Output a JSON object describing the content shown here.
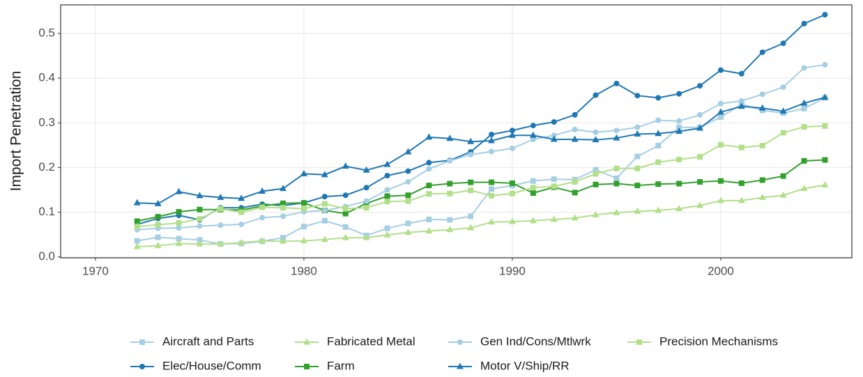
{
  "chart_data": {
    "type": "line",
    "y_label": "Import Penetration",
    "x": [
      1972,
      1973,
      1974,
      1975,
      1976,
      1977,
      1978,
      1979,
      1980,
      1981,
      1982,
      1983,
      1984,
      1985,
      1986,
      1987,
      1988,
      1989,
      1990,
      1991,
      1992,
      1993,
      1994,
      1995,
      1996,
      1997,
      1998,
      1999,
      2000,
      2001,
      2002,
      2003,
      2004,
      2005
    ],
    "xlim": [
      1968.33,
      2006.29
    ],
    "xticks": [
      1970,
      1980,
      1990,
      2000
    ],
    "ylim": [
      -0.002,
      0.564
    ],
    "yticks": [
      {
        "value": 0,
        "label": "0.0"
      },
      0.1,
      0.2,
      0.3,
      0.4,
      0.5
    ],
    "grid": true,
    "legend": "bottom",
    "series": [
      {
        "name": "Aircraft and Parts",
        "color": "#a6cee3",
        "marker": "square",
        "values": [
          0.036,
          0.044,
          0.041,
          0.038,
          0.029,
          0.03,
          0.035,
          0.043,
          0.068,
          0.081,
          0.067,
          0.048,
          0.064,
          0.075,
          0.084,
          0.083,
          0.091,
          0.152,
          0.16,
          0.17,
          0.174,
          0.173,
          0.195,
          0.176,
          0.225,
          0.249,
          0.29,
          0.29,
          0.313,
          0.342,
          0.328,
          0.322,
          0.332,
          0.356
        ]
      },
      {
        "name": "Elec/House/Comm",
        "color": "#1f78b4",
        "marker": "circle",
        "values": [
          0.073,
          0.086,
          0.093,
          0.083,
          0.11,
          0.11,
          0.118,
          0.115,
          0.121,
          0.135,
          0.138,
          0.155,
          0.182,
          0.192,
          0.211,
          0.216,
          0.235,
          0.274,
          0.283,
          0.294,
          0.302,
          0.318,
          0.362,
          0.388,
          0.361,
          0.356,
          0.365,
          0.383,
          0.418,
          0.41,
          0.458,
          0.478,
          0.522,
          0.542
        ]
      },
      {
        "name": "Fabricated Metal",
        "color": "#b2df8a",
        "marker": "triangle",
        "values": [
          0.023,
          0.025,
          0.03,
          0.029,
          0.029,
          0.032,
          0.036,
          0.035,
          0.036,
          0.039,
          0.043,
          0.043,
          0.049,
          0.055,
          0.058,
          0.061,
          0.065,
          0.078,
          0.079,
          0.081,
          0.084,
          0.087,
          0.094,
          0.099,
          0.102,
          0.104,
          0.108,
          0.115,
          0.126,
          0.126,
          0.133,
          0.138,
          0.153,
          0.161
        ]
      },
      {
        "name": "Farm",
        "color": "#33a02c",
        "marker": "square",
        "values": [
          0.08,
          0.09,
          0.101,
          0.106,
          0.106,
          0.105,
          0.114,
          0.12,
          0.121,
          0.104,
          0.097,
          0.12,
          0.136,
          0.138,
          0.16,
          0.164,
          0.167,
          0.167,
          0.165,
          0.143,
          0.156,
          0.144,
          0.162,
          0.164,
          0.16,
          0.163,
          0.164,
          0.168,
          0.17,
          0.165,
          0.172,
          0.181,
          0.215,
          0.217
        ]
      },
      {
        "name": "Gen Ind/Cons/Mtlwrk",
        "color": "#a6cee3",
        "marker": "circle",
        "values": [
          0.061,
          0.064,
          0.065,
          0.069,
          0.071,
          0.073,
          0.088,
          0.091,
          0.101,
          0.104,
          0.113,
          0.125,
          0.15,
          0.168,
          0.197,
          0.215,
          0.229,
          0.236,
          0.243,
          0.263,
          0.272,
          0.285,
          0.279,
          0.283,
          0.29,
          0.306,
          0.304,
          0.318,
          0.343,
          0.349,
          0.364,
          0.38,
          0.423,
          0.43
        ]
      },
      {
        "name": "Motor V/Ship/RR",
        "color": "#1f78b4",
        "marker": "triangle",
        "values": [
          0.121,
          0.119,
          0.146,
          0.137,
          0.133,
          0.131,
          0.147,
          0.153,
          0.186,
          0.184,
          0.203,
          0.194,
          0.207,
          0.235,
          0.268,
          0.265,
          0.258,
          0.26,
          0.272,
          0.272,
          0.263,
          0.263,
          0.262,
          0.266,
          0.275,
          0.276,
          0.281,
          0.288,
          0.324,
          0.337,
          0.333,
          0.326,
          0.344,
          0.357
        ]
      },
      {
        "name": "Precision Mechanisms",
        "color": "#b2df8a",
        "marker": "square",
        "values": [
          0.068,
          0.072,
          0.076,
          0.085,
          0.108,
          0.1,
          0.111,
          0.11,
          0.108,
          0.119,
          0.108,
          0.11,
          0.124,
          0.125,
          0.141,
          0.142,
          0.149,
          0.137,
          0.142,
          0.155,
          0.158,
          0.168,
          0.186,
          0.198,
          0.198,
          0.212,
          0.218,
          0.224,
          0.251,
          0.245,
          0.249,
          0.278,
          0.291,
          0.293
        ]
      }
    ]
  }
}
